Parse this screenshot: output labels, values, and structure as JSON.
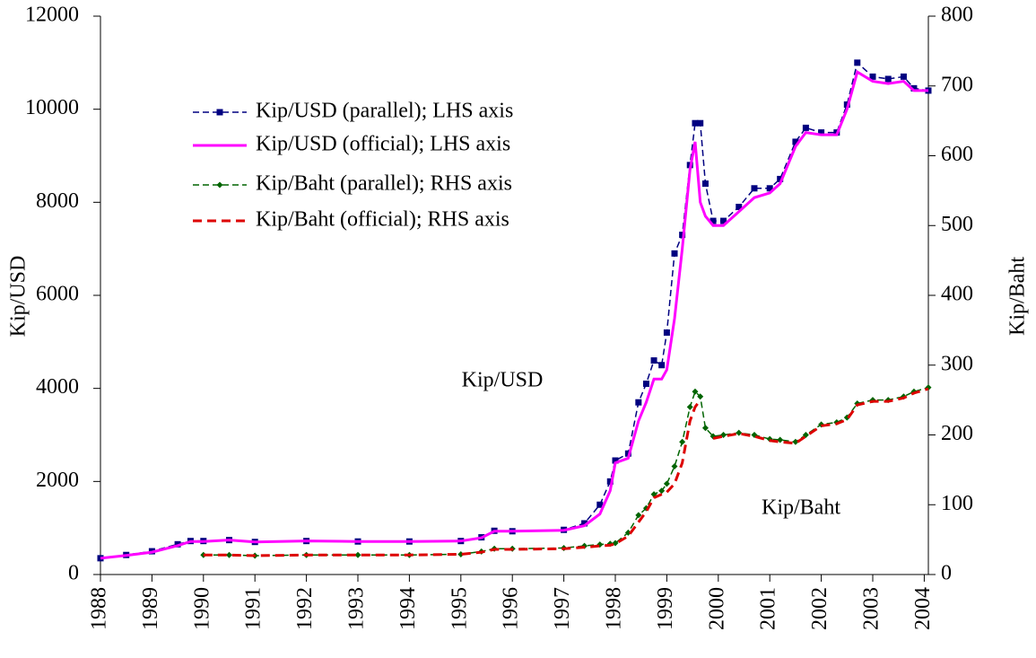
{
  "chart_data": {
    "type": "line",
    "y_label": "Kip/USD",
    "y2_label": "Kip/Baht",
    "annotations": [
      "Kip/USD",
      "Kip/Baht"
    ],
    "x": [
      1988.0,
      1988.5,
      1989.0,
      1989.5,
      1989.75,
      1990.0,
      1990.5,
      1991.0,
      1992.0,
      1993.0,
      1994.0,
      1995.0,
      1995.4,
      1995.65,
      1996.0,
      1997.0,
      1997.4,
      1997.7,
      1997.9,
      1998.0,
      1998.25,
      1998.45,
      1998.6,
      1998.75,
      1998.9,
      1999.0,
      1999.15,
      1999.3,
      1999.45,
      1999.55,
      1999.65,
      1999.75,
      1999.9,
      2000.1,
      2000.4,
      2000.7,
      2001.0,
      2001.2,
      2001.5,
      2001.7,
      2002.0,
      2002.3,
      2002.5,
      2002.7,
      2003.0,
      2003.3,
      2003.6,
      2003.8,
      2004.08
    ],
    "xlim": [
      1988,
      2004.08
    ],
    "xticks": [
      1988,
      1989,
      1990,
      1991,
      1992,
      1993,
      1994,
      1995,
      1996,
      1997,
      1998,
      1999,
      2000,
      2001,
      2002,
      2003,
      2004
    ],
    "ylim": [
      0,
      12000
    ],
    "yticks": [
      0,
      2000,
      4000,
      6000,
      8000,
      10000,
      12000
    ],
    "y2lim": [
      0,
      800
    ],
    "y2ticks": [
      0,
      100,
      200,
      300,
      400,
      500,
      600,
      700,
      800
    ],
    "legend": "upper left",
    "series": [
      {
        "name": "Kip/USD (parallel); LHS axis",
        "color": "#000080",
        "line_style": "dashed",
        "marker": "square",
        "values": [
          350,
          420,
          500,
          650,
          720,
          720,
          740,
          700,
          720,
          710,
          710,
          720,
          800,
          940,
          930,
          960,
          1100,
          1500,
          2000,
          2450,
          2600,
          3700,
          4100,
          4600,
          4500,
          5200,
          6900,
          7300,
          8800,
          9700,
          9700,
          8400,
          7600,
          7600,
          7900,
          8300,
          8300,
          8500,
          9300,
          9600,
          9500,
          9500,
          10100,
          11000,
          10700,
          10650,
          10700,
          10450,
          10400
        ]
      },
      {
        "name": "Kip/USD (official); LHS axis",
        "color": "#ff00ff",
        "line_style": "solid",
        "marker": null,
        "values": [
          350,
          410,
          480,
          620,
          710,
          710,
          740,
          700,
          720,
          710,
          710,
          720,
          790,
          930,
          930,
          950,
          1050,
          1300,
          1800,
          2400,
          2500,
          3300,
          3700,
          4200,
          4200,
          4400,
          5500,
          7000,
          8700,
          9300,
          8000,
          7700,
          7500,
          7500,
          7800,
          8100,
          8200,
          8400,
          9200,
          9500,
          9450,
          9450,
          10000,
          10800,
          10600,
          10550,
          10600,
          10400,
          10400
        ]
      },
      {
        "name": "Kip/Baht (parallel); RHS axis",
        "color": "#006400",
        "line_style": "dashed",
        "marker": "diamond",
        "axis": "y2",
        "values": [
          null,
          null,
          null,
          null,
          null,
          28,
          28,
          27,
          28,
          28,
          28,
          29,
          33,
          37,
          37,
          38,
          41,
          43,
          44,
          45,
          60,
          85,
          95,
          115,
          120,
          130,
          155,
          190,
          240,
          262,
          255,
          210,
          198,
          200,
          203,
          200,
          194,
          193,
          190,
          200,
          215,
          218,
          225,
          245,
          250,
          250,
          255,
          262,
          268
        ]
      },
      {
        "name": "Kip/Baht (official); RHS axis",
        "color": "#dd0000",
        "line_style": "dashed",
        "marker": null,
        "axis": "y2",
        "values": [
          null,
          null,
          null,
          null,
          null,
          28,
          28,
          27,
          28,
          28,
          28,
          29,
          32,
          36,
          36,
          37,
          39,
          41,
          42,
          44,
          55,
          75,
          90,
          110,
          115,
          118,
          130,
          160,
          220,
          240,
          250,
          null,
          195,
          198,
          202,
          198,
          192,
          190,
          188,
          198,
          213,
          216,
          222,
          243,
          248,
          248,
          253,
          260,
          266
        ]
      }
    ]
  }
}
